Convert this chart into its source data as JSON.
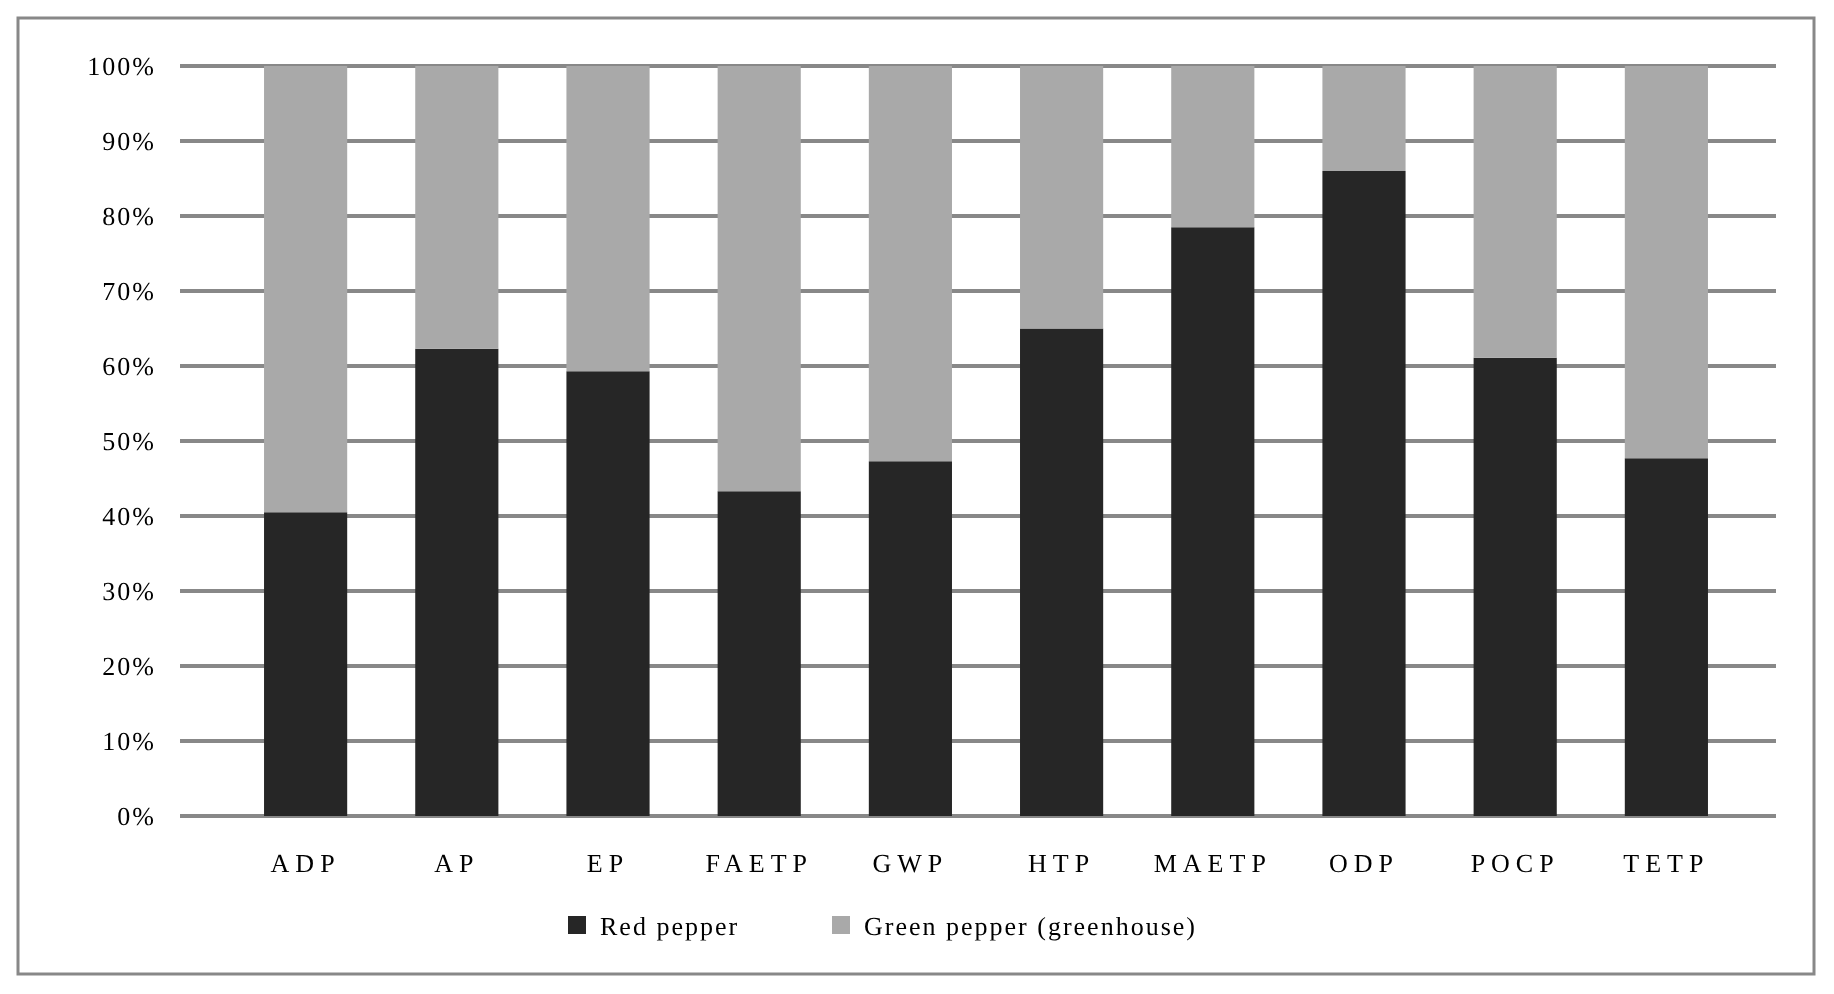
{
  "chart_data": {
    "type": "bar",
    "stacked": true,
    "categories": [
      "ADP",
      "AP",
      "EP",
      "FAETP",
      "GWP",
      "HTP",
      "MAETP",
      "ODP",
      "POCP",
      "TETP"
    ],
    "series": [
      {
        "name": "Red pepper",
        "color": "#262626",
        "values": [
          40.5,
          62.3,
          59.3,
          43.3,
          47.3,
          65,
          78.5,
          86,
          61.1,
          47.7
        ]
      },
      {
        "name": "Green pepper (greenhouse)",
        "color": "#a9a9a9",
        "values": [
          59.5,
          37.7,
          40.7,
          56.7,
          52.7,
          35,
          21.5,
          14,
          38.9,
          52.3
        ]
      }
    ],
    "ylim": [
      0,
      100
    ],
    "yticks": [
      {
        "value": 0,
        "label": "0%"
      },
      {
        "value": 10,
        "label": "10%"
      },
      {
        "value": 20,
        "label": "20%"
      },
      {
        "value": 30,
        "label": "30%"
      },
      {
        "value": 40,
        "label": "40%"
      },
      {
        "value": 50,
        "label": "50%"
      },
      {
        "value": 60,
        "label": "60%"
      },
      {
        "value": 70,
        "label": "70%"
      },
      {
        "value": 80,
        "label": "80%"
      },
      {
        "value": 90,
        "label": "90%"
      },
      {
        "value": 100,
        "label": "100%"
      }
    ],
    "grid": "y",
    "legend": "bottom"
  }
}
